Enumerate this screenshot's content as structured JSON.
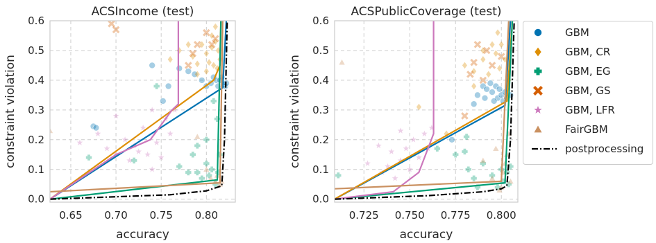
{
  "chart_data": [
    {
      "type": "scatter",
      "title": "ACSIncome (test)",
      "xlabel": "accuracy",
      "ylabel": "constraint violation",
      "xlim": [
        0.627,
        0.832
      ],
      "ylim": [
        -0.01,
        0.6
      ],
      "xticks": [
        0.65,
        0.7,
        0.75,
        0.8
      ],
      "xtick_labels": [
        "0.65",
        "0.70",
        "0.75",
        "0.80"
      ],
      "yticks": [
        0.0,
        0.1,
        0.2,
        0.3,
        0.4,
        0.5,
        0.6
      ],
      "ytick_labels": [
        "0.0",
        "0.1",
        "0.2",
        "0.3",
        "0.4",
        "0.5",
        "0.6"
      ],
      "grid": true,
      "series": [
        {
          "name": "GBM",
          "marker": "circle",
          "color": "#0173b2",
          "points": [
            [
              0.675,
              0.245
            ],
            [
              0.678,
              0.24
            ],
            [
              0.74,
              0.45
            ],
            [
              0.752,
              0.33
            ],
            [
              0.758,
              0.38
            ],
            [
              0.77,
              0.44
            ],
            [
              0.78,
              0.43
            ],
            [
              0.787,
              0.42
            ],
            [
              0.795,
              0.4
            ],
            [
              0.8,
              0.38
            ],
            [
              0.805,
              0.39
            ],
            [
              0.808,
              0.41
            ],
            [
              0.811,
              0.4
            ],
            [
              0.813,
              0.38
            ],
            [
              0.815,
              0.4
            ],
            [
              0.817,
              0.41
            ],
            [
              0.819,
              0.385
            ],
            [
              0.821,
              0.38
            ],
            [
              0.822,
              0.39
            ]
          ],
          "front": [
            [
              0.627,
              0.0
            ],
            [
              0.818,
              0.375
            ],
            [
              0.822,
              0.6
            ]
          ]
        },
        {
          "name": "GBM, CR",
          "marker": "diamond",
          "color": "#de8f05",
          "points": [
            [
              0.76,
              0.47
            ],
            [
              0.77,
              0.5
            ],
            [
              0.78,
              0.52
            ],
            [
              0.785,
              0.48
            ],
            [
              0.79,
              0.455
            ],
            [
              0.795,
              0.52
            ],
            [
              0.8,
              0.49
            ],
            [
              0.803,
              0.46
            ],
            [
              0.806,
              0.51
            ],
            [
              0.808,
              0.45
            ],
            [
              0.81,
              0.53
            ],
            [
              0.813,
              0.5
            ],
            [
              0.815,
              0.47
            ],
            [
              0.806,
              0.55
            ],
            [
              0.81,
              0.58
            ],
            [
              0.79,
              0.42
            ],
            [
              0.8,
              0.43
            ],
            [
              0.812,
              0.44
            ]
          ],
          "front": [
            [
              0.627,
              0.0
            ],
            [
              0.808,
              0.4
            ],
            [
              0.815,
              0.45
            ],
            [
              0.816,
              0.6
            ]
          ]
        },
        {
          "name": "GBM, EG",
          "marker": "plus",
          "color": "#029e73",
          "points": [
            [
              0.67,
              0.14
            ],
            [
              0.72,
              0.13
            ],
            [
              0.745,
              0.38
            ],
            [
              0.77,
              0.11
            ],
            [
              0.78,
              0.09
            ],
            [
              0.785,
              0.15
            ],
            [
              0.79,
              0.18
            ],
            [
              0.795,
              0.07
            ],
            [
              0.8,
              0.12
            ],
            [
              0.803,
              0.08
            ],
            [
              0.806,
              0.1
            ],
            [
              0.81,
              0.05
            ],
            [
              0.813,
              0.09
            ],
            [
              0.815,
              0.15
            ],
            [
              0.8,
              0.2
            ],
            [
              0.79,
              0.09
            ],
            [
              0.808,
              0.33
            ],
            [
              0.812,
              0.27
            ]
          ],
          "front": [
            [
              0.627,
              0.0
            ],
            [
              0.812,
              0.065
            ],
            [
              0.816,
              0.6
            ]
          ]
        },
        {
          "name": "GBM, GS",
          "marker": "x",
          "color": "#d55e00",
          "points": [
            [
              0.695,
              0.59
            ],
            [
              0.7,
              0.57
            ],
            [
              0.785,
              0.49
            ],
            [
              0.79,
              0.52
            ],
            [
              0.8,
              0.56
            ],
            [
              0.806,
              0.52
            ],
            [
              0.78,
              0.45
            ],
            [
              0.81,
              0.54
            ]
          ],
          "front": []
        },
        {
          "name": "GBM, LFR",
          "marker": "star",
          "color": "#cc78bc",
          "points": [
            [
              0.66,
              0.19
            ],
            [
              0.68,
              0.22
            ],
            [
              0.69,
              0.17
            ],
            [
              0.7,
              0.15
            ],
            [
              0.71,
              0.2
            ],
            [
              0.715,
              0.13
            ],
            [
              0.72,
              0.18
            ],
            [
              0.725,
              0.16
            ],
            [
              0.73,
              0.24
            ],
            [
              0.735,
              0.15
            ],
            [
              0.74,
              0.1
            ],
            [
              0.745,
              0.19
            ],
            [
              0.75,
              0.14
            ],
            [
              0.755,
              0.27
            ],
            [
              0.76,
              0.22
            ],
            [
              0.765,
              0.3
            ],
            [
              0.7,
              0.28
            ],
            [
              0.74,
              0.3
            ]
          ],
          "front": [
            [
              0.627,
              0.0
            ],
            [
              0.7,
              0.15
            ],
            [
              0.738,
              0.2
            ],
            [
              0.762,
              0.3
            ],
            [
              0.769,
              0.32
            ],
            [
              0.769,
              0.6
            ]
          ]
        },
        {
          "name": "FairGBM",
          "marker": "triangle",
          "color": "#ca9161",
          "points": [
            [
              0.627,
              0.23
            ],
            [
              0.79,
              0.21
            ],
            [
              0.8,
              0.1
            ],
            [
              0.805,
              0.07
            ],
            [
              0.81,
              0.06
            ],
            [
              0.812,
              0.08
            ],
            [
              0.815,
              0.05
            ],
            [
              0.817,
              0.06
            ]
          ],
          "front": [
            [
              0.627,
              0.025
            ],
            [
              0.815,
              0.055
            ],
            [
              0.818,
              0.6
            ]
          ]
        },
        {
          "name": "postprocessing",
          "marker": "dashdot",
          "color": "#000000",
          "points": [],
          "front": [
            [
              0.627,
              0.0
            ],
            [
              0.76,
              0.015
            ],
            [
              0.8,
              0.028
            ],
            [
              0.817,
              0.045
            ],
            [
              0.82,
              0.2
            ],
            [
              0.823,
              0.6
            ]
          ]
        }
      ]
    },
    {
      "type": "scatter",
      "title": "ACSPublicCoverage (test)",
      "xlabel": "accuracy",
      "ylabel": "constraint violation",
      "xlim": [
        0.709,
        0.809
      ],
      "ylim": [
        -0.01,
        0.6
      ],
      "xticks": [
        0.725,
        0.75,
        0.775,
        0.8
      ],
      "xtick_labels": [
        "0.725",
        "0.750",
        "0.775",
        "0.800"
      ],
      "yticks": [
        0.0,
        0.1,
        0.2,
        0.3,
        0.4,
        0.5,
        0.6
      ],
      "ytick_labels": [
        "0.0",
        "0.1",
        "0.2",
        "0.3",
        "0.4",
        "0.5",
        "0.6"
      ],
      "grid": true,
      "series": [
        {
          "name": "GBM",
          "marker": "circle",
          "color": "#0173b2",
          "points": [
            [
              0.773,
              0.2
            ],
            [
              0.785,
              0.32
            ],
            [
              0.787,
              0.35
            ],
            [
              0.79,
              0.38
            ],
            [
              0.792,
              0.37
            ],
            [
              0.794,
              0.39
            ],
            [
              0.795,
              0.36
            ],
            [
              0.797,
              0.38
            ],
            [
              0.798,
              0.34
            ],
            [
              0.799,
              0.37
            ],
            [
              0.8,
              0.35
            ],
            [
              0.801,
              0.33
            ],
            [
              0.802,
              0.36
            ],
            [
              0.803,
              0.34
            ],
            [
              0.805,
              0.35
            ],
            [
              0.796,
              0.33
            ],
            [
              0.791,
              0.34
            ]
          ],
          "front": [
            [
              0.709,
              0.0
            ],
            [
              0.802,
              0.315
            ],
            [
              0.805,
              0.6
            ]
          ]
        },
        {
          "name": "GBM, CR",
          "marker": "diamond",
          "color": "#de8f05",
          "points": [
            [
              0.755,
              0.31
            ],
            [
              0.77,
              0.22
            ],
            [
              0.78,
              0.45
            ],
            [
              0.785,
              0.43
            ],
            [
              0.79,
              0.47
            ],
            [
              0.793,
              0.42
            ],
            [
              0.795,
              0.52
            ],
            [
              0.797,
              0.49
            ],
            [
              0.799,
              0.44
            ],
            [
              0.8,
              0.52
            ],
            [
              0.802,
              0.47
            ],
            [
              0.804,
              0.4
            ],
            [
              0.798,
              0.56
            ],
            [
              0.79,
              0.5
            ],
            [
              0.785,
              0.38
            ]
          ],
          "front": [
            [
              0.709,
              0.0
            ],
            [
              0.803,
              0.33
            ],
            [
              0.806,
              0.6
            ]
          ]
        },
        {
          "name": "GBM, EG",
          "marker": "plus",
          "color": "#029e73",
          "points": [
            [
              0.711,
              0.08
            ],
            [
              0.765,
              0.17
            ],
            [
              0.775,
              0.15
            ],
            [
              0.78,
              0.16
            ],
            [
              0.782,
              0.1
            ],
            [
              0.785,
              0.07
            ],
            [
              0.79,
              0.12
            ],
            [
              0.795,
              0.08
            ],
            [
              0.798,
              0.04
            ],
            [
              0.8,
              0.1
            ],
            [
              0.801,
              0.06
            ],
            [
              0.803,
              0.09
            ],
            [
              0.804,
              0.05
            ],
            [
              0.805,
              0.11
            ],
            [
              0.781,
              0.21
            ],
            [
              0.787,
              0.04
            ]
          ],
          "front": [
            [
              0.709,
              0.0
            ],
            [
              0.802,
              0.055
            ],
            [
              0.806,
              0.6
            ]
          ]
        },
        {
          "name": "GBM, GS",
          "marker": "x",
          "color": "#d55e00",
          "points": [
            [
              0.783,
              0.42
            ],
            [
              0.785,
              0.46
            ],
            [
              0.79,
              0.4
            ],
            [
              0.787,
              0.52
            ],
            [
              0.795,
              0.45
            ],
            [
              0.8,
              0.48
            ],
            [
              0.78,
              0.28
            ],
            [
              0.792,
              0.5
            ]
          ],
          "front": []
        },
        {
          "name": "GBM, LFR",
          "marker": "star",
          "color": "#cc78bc",
          "points": [
            [
              0.727,
              0.12
            ],
            [
              0.733,
              0.18
            ],
            [
              0.738,
              0.11
            ],
            [
              0.742,
              0.07
            ],
            [
              0.745,
              0.13
            ],
            [
              0.748,
              0.17
            ],
            [
              0.75,
              0.1
            ],
            [
              0.752,
              0.2
            ],
            [
              0.755,
              0.14
            ],
            [
              0.758,
              0.22
            ],
            [
              0.76,
              0.17
            ],
            [
              0.745,
              0.23
            ],
            [
              0.74,
              0.16
            ],
            [
              0.735,
              0.09
            ],
            [
              0.762,
              0.24
            ]
          ],
          "front": [
            [
              0.709,
              0.0
            ],
            [
              0.741,
              0.025
            ],
            [
              0.755,
              0.09
            ],
            [
              0.763,
              0.22
            ],
            [
              0.763,
              0.6
            ]
          ]
        },
        {
          "name": "FairGBM",
          "marker": "triangle",
          "color": "#ca9161",
          "points": [
            [
              0.713,
              0.46
            ],
            [
              0.79,
              0.13
            ],
            [
              0.795,
              0.07
            ],
            [
              0.8,
              0.04
            ],
            [
              0.801,
              0.09
            ],
            [
              0.802,
              0.12
            ],
            [
              0.803,
              0.15
            ],
            [
              0.804,
              0.22
            ],
            [
              0.805,
              0.06
            ],
            [
              0.799,
              0.03
            ],
            [
              0.797,
              0.17
            ]
          ],
          "front": [
            [
              0.709,
              0.035
            ],
            [
              0.8,
              0.06
            ],
            [
              0.804,
              0.6
            ]
          ]
        },
        {
          "name": "postprocessing",
          "marker": "dashdot",
          "color": "#000000",
          "points": [],
          "front": [
            [
              0.709,
              0.0
            ],
            [
              0.76,
              0.012
            ],
            [
              0.79,
              0.025
            ],
            [
              0.8,
              0.035
            ],
            [
              0.803,
              0.045
            ],
            [
              0.805,
              0.2
            ],
            [
              0.807,
              0.6
            ]
          ]
        }
      ]
    }
  ],
  "legend": {
    "placement": "right",
    "items": [
      {
        "label": "GBM",
        "marker": "circle",
        "color": "#0173b2"
      },
      {
        "label": "GBM, CR",
        "marker": "diamond",
        "color": "#de8f05"
      },
      {
        "label": "GBM, EG",
        "marker": "plus",
        "color": "#029e73"
      },
      {
        "label": "GBM, GS",
        "marker": "x",
        "color": "#d55e00"
      },
      {
        "label": "GBM, LFR",
        "marker": "star",
        "color": "#cc78bc"
      },
      {
        "label": "FairGBM",
        "marker": "triangle",
        "color": "#ca9161"
      },
      {
        "label": "postprocessing",
        "marker": "dashdot",
        "color": "#000000"
      }
    ]
  }
}
